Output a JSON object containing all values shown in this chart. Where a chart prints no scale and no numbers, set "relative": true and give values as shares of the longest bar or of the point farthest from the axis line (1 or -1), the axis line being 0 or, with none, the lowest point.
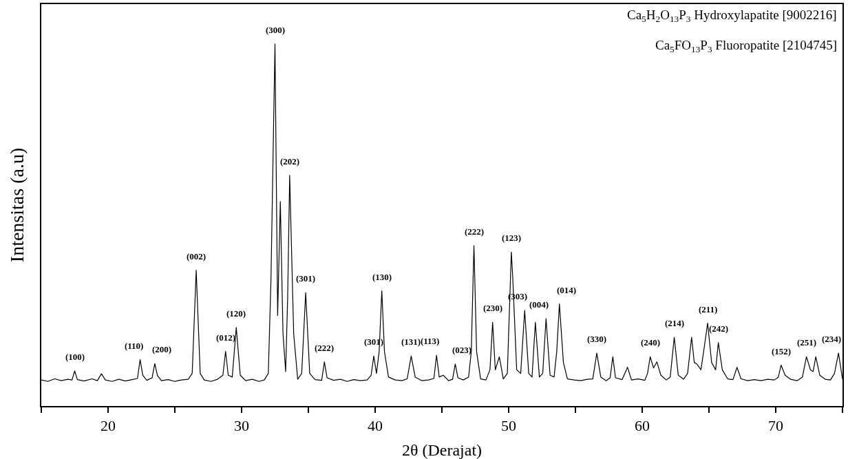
{
  "chart_data": {
    "type": "line",
    "relative": true,
    "xlabel": "2θ (Derajat)",
    "ylabel": "Intensitas (a.u)",
    "xlim": [
      15,
      75
    ],
    "xticks": [
      {
        "value": 15,
        "label": null
      },
      20,
      {
        "value": 25,
        "label": null
      },
      30,
      {
        "value": 35,
        "label": null
      },
      40,
      {
        "value": 45,
        "label": null
      },
      50,
      {
        "value": 55,
        "label": null
      },
      60,
      {
        "value": 65,
        "label": null
      },
      70,
      {
        "value": 75,
        "label": null
      }
    ],
    "line_style": "solid",
    "marker": "none",
    "series": [
      {
        "color": "#000000",
        "x": [
          15.0,
          15.5,
          16.0,
          16.5,
          17.0,
          17.3,
          17.5,
          17.7,
          18.2,
          18.8,
          19.2,
          19.5,
          19.8,
          20.3,
          20.8,
          21.3,
          21.8,
          22.2,
          22.4,
          22.6,
          22.9,
          23.3,
          23.5,
          23.7,
          24.0,
          24.5,
          25.0,
          25.5,
          26.0,
          26.3,
          26.6,
          26.9,
          27.2,
          27.7,
          28.2,
          28.6,
          28.8,
          29.0,
          29.3,
          29.6,
          29.9,
          30.3,
          30.8,
          31.3,
          31.7,
          32.0,
          32.2,
          32.5,
          32.7,
          32.9,
          33.1,
          33.3,
          33.45,
          33.6,
          33.9,
          34.2,
          34.5,
          34.8,
          35.1,
          35.5,
          36.0,
          36.2,
          36.4,
          36.9,
          37.4,
          37.9,
          38.4,
          38.9,
          39.4,
          39.7,
          39.9,
          40.1,
          40.3,
          40.5,
          40.7,
          41.0,
          41.5,
          42.0,
          42.4,
          42.7,
          43.0,
          43.5,
          44.0,
          44.4,
          44.6,
          44.8,
          45.1,
          45.5,
          45.8,
          46.0,
          46.2,
          46.6,
          47.0,
          47.2,
          47.4,
          47.6,
          47.9,
          48.3,
          48.6,
          48.8,
          49.0,
          49.3,
          49.6,
          49.9,
          50.2,
          50.3,
          50.6,
          50.9,
          51.2,
          51.5,
          51.75,
          52.0,
          52.3,
          52.55,
          52.8,
          53.1,
          53.4,
          53.6,
          53.8,
          54.1,
          54.4,
          54.9,
          55.4,
          55.9,
          56.3,
          56.6,
          56.9,
          57.3,
          57.6,
          57.8,
          58.0,
          58.5,
          58.9,
          59.2,
          59.7,
          60.2,
          60.4,
          60.6,
          60.85,
          61.1,
          61.4,
          61.8,
          62.1,
          62.4,
          62.7,
          63.1,
          63.4,
          63.7,
          63.9,
          64.1,
          64.4,
          64.6,
          64.9,
          65.2,
          65.5,
          65.7,
          66.0,
          66.4,
          66.8,
          67.1,
          67.4,
          67.9,
          68.4,
          68.9,
          69.4,
          69.9,
          70.2,
          70.4,
          70.7,
          71.1,
          71.6,
          72.0,
          72.3,
          72.6,
          72.8,
          73.0,
          73.3,
          73.7,
          74.1,
          74.4,
          74.7,
          75.0
        ],
        "values": [
          0.072,
          0.068,
          0.075,
          0.07,
          0.074,
          0.072,
          0.097,
          0.073,
          0.069,
          0.075,
          0.07,
          0.089,
          0.072,
          0.068,
          0.074,
          0.069,
          0.073,
          0.076,
          0.128,
          0.085,
          0.071,
          0.078,
          0.117,
          0.084,
          0.07,
          0.073,
          0.068,
          0.072,
          0.074,
          0.09,
          0.375,
          0.09,
          0.072,
          0.068,
          0.074,
          0.085,
          0.151,
          0.085,
          0.08,
          0.217,
          0.085,
          0.07,
          0.074,
          0.068,
          0.072,
          0.09,
          0.35,
          1.0,
          0.25,
          0.565,
          0.2,
          0.095,
          0.3,
          0.637,
          0.2,
          0.074,
          0.09,
          0.313,
          0.09,
          0.073,
          0.071,
          0.122,
          0.078,
          0.071,
          0.074,
          0.068,
          0.073,
          0.07,
          0.072,
          0.085,
          0.138,
          0.09,
          0.15,
          0.318,
          0.15,
          0.08,
          0.072,
          0.07,
          0.075,
          0.138,
          0.08,
          0.07,
          0.072,
          0.076,
          0.14,
          0.08,
          0.085,
          0.07,
          0.074,
          0.116,
          0.078,
          0.072,
          0.08,
          0.15,
          0.443,
          0.15,
          0.075,
          0.072,
          0.1,
          0.231,
          0.1,
          0.136,
          0.075,
          0.09,
          0.425,
          0.36,
          0.1,
          0.09,
          0.264,
          0.09,
          0.08,
          0.231,
          0.08,
          0.09,
          0.241,
          0.085,
          0.08,
          0.15,
          0.282,
          0.12,
          0.075,
          0.072,
          0.07,
          0.074,
          0.075,
          0.146,
          0.08,
          0.07,
          0.078,
          0.136,
          0.078,
          0.073,
          0.107,
          0.072,
          0.075,
          0.071,
          0.09,
          0.136,
          0.105,
          0.122,
          0.085,
          0.072,
          0.08,
          0.19,
          0.085,
          0.074,
          0.09,
          0.19,
          0.12,
          0.116,
          0.1,
          0.15,
          0.229,
          0.12,
          0.1,
          0.175,
          0.1,
          0.075,
          0.073,
          0.107,
          0.075,
          0.07,
          0.073,
          0.07,
          0.074,
          0.072,
          0.08,
          0.113,
          0.085,
          0.074,
          0.07,
          0.08,
          0.136,
          0.1,
          0.095,
          0.136,
          0.085,
          0.074,
          0.072,
          0.09,
          0.146,
          0.075
        ]
      }
    ],
    "annotations": [
      {
        "text": "Ca$_{5}$H$_{2}$O$_{13}$P$_{3}$ Hydroxylapatite [9002216]"
      },
      {
        "text": "Ca$_{5}$FO$_{13}$P$_{3}$ Fluoropatite [2104745]"
      },
      {
        "text": "(100)",
        "x": 17.5,
        "y": 0.097
      },
      {
        "text": "(110)",
        "x": 22.4,
        "y": 0.128
      },
      {
        "text": "(200)",
        "x": 23.5,
        "y": 0.117
      },
      {
        "text": "(002)",
        "x": 26.6,
        "y": 0.375
      },
      {
        "text": "(012)",
        "x": 28.8,
        "y": 0.151
      },
      {
        "text": "(120)",
        "x": 29.6,
        "y": 0.217
      },
      {
        "text": "(300)",
        "x": 32.5,
        "y": 1.0
      },
      {
        "text": "(202)",
        "x": 33.6,
        "y": 0.637
      },
      {
        "text": "(301)",
        "x": 34.8,
        "y": 0.313
      },
      {
        "text": "(222)",
        "x": 36.2,
        "y": 0.122
      },
      {
        "text": "(301)",
        "x": 39.9,
        "y": 0.138
      },
      {
        "text": "(130)",
        "x": 40.5,
        "y": 0.318
      },
      {
        "text": "(131)",
        "x": 42.7,
        "y": 0.138
      },
      {
        "text": "(113)",
        "x": 44.6,
        "y": 0.14
      },
      {
        "text": "(023)",
        "x": 46.0,
        "y": 0.116
      },
      {
        "text": "(222)",
        "x": 47.4,
        "y": 0.443
      },
      {
        "text": "(230)",
        "x": 48.8,
        "y": 0.231
      },
      {
        "text": "(123)",
        "x": 50.2,
        "y": 0.425
      },
      {
        "text": "(303)",
        "x": 51.2,
        "y": 0.264
      },
      {
        "text": "(004)",
        "x": 52.8,
        "y": 0.241
      },
      {
        "text": "(014)",
        "x": 53.8,
        "y": 0.282
      },
      {
        "text": "(330)",
        "x": 56.6,
        "y": 0.146
      },
      {
        "text": "(240)",
        "x": 60.6,
        "y": 0.136
      },
      {
        "text": "(214)",
        "x": 62.4,
        "y": 0.19
      },
      {
        "text": "(211)",
        "x": 64.9,
        "y": 0.229
      },
      {
        "text": "(242)",
        "x": 65.7,
        "y": 0.175
      },
      {
        "text": "(152)",
        "x": 70.4,
        "y": 0.113
      },
      {
        "text": "(251)",
        "x": 72.3,
        "y": 0.136
      },
      {
        "text": "(234)",
        "x": 74.7,
        "y": 0.146
      }
    ]
  }
}
